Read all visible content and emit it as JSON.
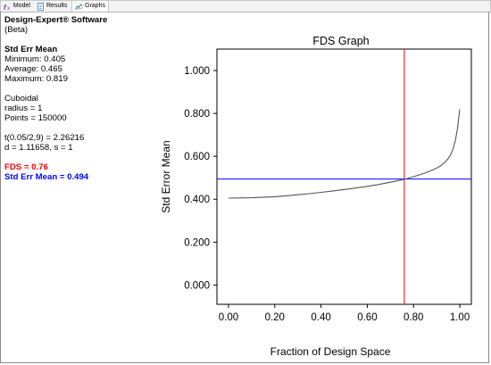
{
  "tabs": [
    {
      "label": "Model",
      "icon": "fx-icon"
    },
    {
      "label": "Results",
      "icon": "document-icon"
    },
    {
      "label": "Graphs",
      "icon": "graph-icon",
      "active": true
    }
  ],
  "info": {
    "app_name": "Design-Expert® Software",
    "app_edition": "(Beta)",
    "metric_title": "Std Err Mean",
    "minimum": "Minimum: 0.405",
    "average": "Average: 0.465",
    "maximum": "Maximum: 0.819",
    "region": "Cuboidal",
    "radius": "radius = 1",
    "points": "Points = 150000",
    "t_value": "t(0.05/2,9) = 2.26216",
    "d_value": "d = 1.11658, s = 1",
    "fds": "FDS = 0.76",
    "std_err_mean": "Std Err Mean = 0.494",
    "colors": {
      "fds": "#ff0000",
      "std_err_mean": "#0000ff"
    }
  },
  "chart_data": {
    "type": "line",
    "title": "FDS Graph",
    "xlabel": "Fraction of Design Space",
    "ylabel": "Std Error Mean",
    "xlim": [
      -0.05,
      1.05
    ],
    "ylim": [
      -0.09,
      1.1
    ],
    "xticks": [
      0.0,
      0.2,
      0.4,
      0.6,
      0.8,
      1.0
    ],
    "xtick_labels": [
      "0.00",
      "0.20",
      "0.40",
      "0.60",
      "0.80",
      "1.00"
    ],
    "yticks": [
      0.0,
      0.2,
      0.4,
      0.6,
      0.8,
      1.0
    ],
    "ytick_labels": [
      "0.000",
      "0.200",
      "0.400",
      "0.600",
      "0.800",
      "1.000"
    ],
    "series": [
      {
        "color": "#555555",
        "x": [
          0.0,
          0.05,
          0.1,
          0.15,
          0.2,
          0.25,
          0.3,
          0.35,
          0.4,
          0.45,
          0.5,
          0.55,
          0.6,
          0.65,
          0.7,
          0.75,
          0.8,
          0.85,
          0.88,
          0.9,
          0.92,
          0.94,
          0.95,
          0.96,
          0.97,
          0.98,
          0.99,
          1.0
        ],
        "y": [
          0.405,
          0.406,
          0.407,
          0.409,
          0.412,
          0.416,
          0.421,
          0.426,
          0.432,
          0.438,
          0.445,
          0.452,
          0.46,
          0.469,
          0.479,
          0.49,
          0.505,
          0.522,
          0.535,
          0.545,
          0.558,
          0.577,
          0.59,
          0.607,
          0.632,
          0.67,
          0.73,
          0.819
        ]
      }
    ],
    "reference_lines": {
      "vertical": {
        "x": 0.76,
        "color": "#ff0000"
      },
      "horizontal": {
        "y": 0.494,
        "color": "#0000ff"
      }
    },
    "grid": false
  }
}
